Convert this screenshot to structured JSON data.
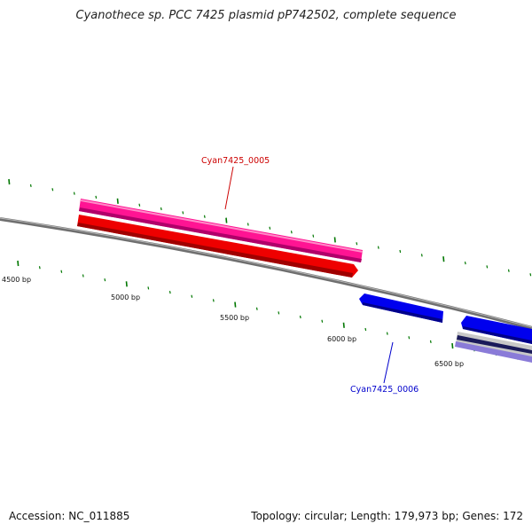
{
  "header": {
    "title": "Cyanothece sp. PCC 7425 plasmid pP742502, complete sequence"
  },
  "footer": {
    "accession": "Accession: NC_011885",
    "summary": "Topology: circular; Length: 179,973 bp; Genes: 172"
  },
  "colors": {
    "backbone": "#7a7a7a",
    "forward_gene": "#ff1493",
    "forward_cds": "#ee0000",
    "reverse_gene": "#0000ee",
    "tick": "#007700",
    "label_forward": "#cc0000",
    "label_reverse": "#0000cc"
  },
  "ruler": {
    "labels": [
      "4500 bp",
      "5000 bp",
      "5500 bp",
      "6000 bp",
      "6500 bp"
    ]
  },
  "genes": [
    {
      "label": "Cyan7425_0005",
      "strand": "forward"
    },
    {
      "label": "Cyan7425_0006",
      "strand": "reverse"
    }
  ]
}
